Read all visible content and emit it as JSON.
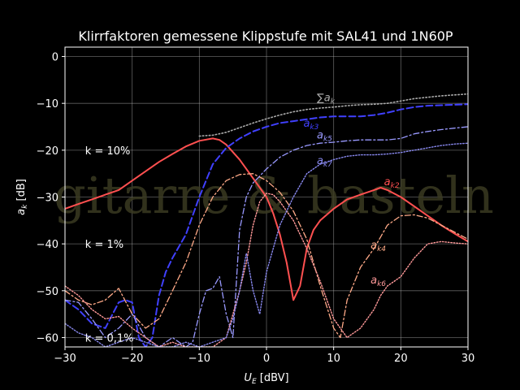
{
  "chart_data": {
    "type": "line",
    "title": "Klirrfaktoren gemessene Klippstufe mit SAL41 und 1N60P",
    "xlabel": {
      "var": "U",
      "sub": "E",
      "unit": " [dBV]"
    },
    "ylabel": {
      "var": "a",
      "sub": "k",
      "unit": " [dB]"
    },
    "xlim": [
      -30,
      30
    ],
    "ylim": [
      -62,
      2
    ],
    "xticks": [
      -30,
      -20,
      -10,
      0,
      10,
      20,
      30
    ],
    "yticks": [
      0,
      -10,
      -20,
      -30,
      -40,
      -50,
      -60
    ],
    "xtick_labels": [
      "−30",
      "−20",
      "−10",
      "0",
      "10",
      "20",
      "30"
    ],
    "ytick_labels": [
      "0",
      "−10",
      "−20",
      "−30",
      "−40",
      "−50",
      "−60"
    ],
    "grid": true,
    "watermark": "gitarre & basteln",
    "reference_labels": [
      {
        "text": "k = 10%",
        "x": -27,
        "y": -20
      },
      {
        "text": "k = 1%",
        "x": -27,
        "y": -40
      },
      {
        "text": "k = 0,1%",
        "x": -27,
        "y": -60
      }
    ],
    "series": [
      {
        "label": "a",
        "sub": "k2",
        "color": "#ff5050",
        "dash": "",
        "width": 2,
        "label_pos": [
          17.5,
          -27.5
        ],
        "x": [
          -30,
          -28,
          -26,
          -24,
          -22,
          -20,
          -18,
          -16,
          -14,
          -12,
          -10,
          -8,
          -7,
          -6,
          -4,
          -2,
          0,
          1,
          2,
          3,
          4,
          5,
          6,
          7,
          8,
          10,
          12,
          14,
          16,
          17,
          18,
          20,
          22,
          24,
          26,
          28,
          30
        ],
        "y": [
          -32.5,
          -31.5,
          -30.5,
          -29.5,
          -28.5,
          -26.5,
          -24.5,
          -22.5,
          -20.8,
          -19.2,
          -18,
          -17.5,
          -17.8,
          -18.8,
          -22,
          -26,
          -30,
          -33.5,
          -38,
          -44,
          -52,
          -49,
          -41,
          -37,
          -35,
          -32.5,
          -30.5,
          -29.5,
          -28.5,
          -28,
          -28.5,
          -30,
          -32,
          -34,
          -36,
          -37.8,
          -39.5
        ]
      },
      {
        "label": "a",
        "sub": "k3",
        "color": "#4040ff",
        "dash": "8,4",
        "width": 2,
        "label_pos": [
          5.5,
          -15
        ],
        "x": [
          -30,
          -28,
          -26,
          -24,
          -22,
          -21,
          -20,
          -19,
          -18,
          -17,
          -16,
          -15,
          -14,
          -12,
          -10,
          -8,
          -6,
          -4,
          -2,
          0,
          2,
          4,
          6,
          8,
          10,
          12,
          14,
          16,
          18,
          20,
          22,
          24,
          26,
          28,
          30
        ],
        "y": [
          -52,
          -54,
          -57,
          -58,
          -52.5,
          -52,
          -52.5,
          -60,
          -62,
          -60,
          -51,
          -46,
          -43,
          -38,
          -30,
          -23,
          -19.5,
          -17.5,
          -16,
          -15,
          -14.2,
          -13.8,
          -13.4,
          -13,
          -12.8,
          -12.8,
          -12.8,
          -12.5,
          -12,
          -11.3,
          -10.8,
          -10.5,
          -10.4,
          -10.3,
          -10.2
        ]
      },
      {
        "label": "a",
        "sub": "k4",
        "color": "#ffaa88",
        "dash": "7,3,2,3",
        "width": 1.3,
        "label_pos": [
          15.5,
          -41
        ],
        "x": [
          -30,
          -28,
          -26,
          -24,
          -22,
          -20,
          -18,
          -16,
          -14,
          -12,
          -10,
          -8,
          -6,
          -4,
          -2,
          0,
          2,
          4,
          6,
          8,
          10,
          11,
          12,
          14,
          16,
          18,
          20,
          22,
          24,
          26,
          28,
          30
        ],
        "y": [
          -50,
          -52,
          -53,
          -52,
          -49.5,
          -55,
          -58,
          -56,
          -50,
          -44,
          -36,
          -30,
          -26.5,
          -25.2,
          -25,
          -26.5,
          -29,
          -33,
          -39,
          -49,
          -58,
          -60,
          -52,
          -45,
          -41,
          -36,
          -34,
          -33.8,
          -34.5,
          -36,
          -37.5,
          -39
        ]
      },
      {
        "label": "a",
        "sub": "k5",
        "color": "#9999ff",
        "dash": "7,3,2,3",
        "width": 1.3,
        "label_pos": [
          7.5,
          -17.5
        ],
        "x": [
          -30,
          -28,
          -26,
          -24,
          -22,
          -20,
          -18,
          -16,
          -14,
          -12,
          -11,
          -10,
          -9,
          -8,
          -7,
          -6,
          -5,
          -4,
          -3,
          -2,
          0,
          2,
          4,
          6,
          8,
          10,
          12,
          14,
          16,
          18,
          20,
          22,
          24,
          26,
          28,
          30
        ],
        "y": [
          -52,
          -52.5,
          -56,
          -60,
          -58,
          -55,
          -60,
          -62,
          -60,
          -62,
          -61,
          -55,
          -50,
          -49.5,
          -47,
          -55,
          -60,
          -37,
          -30,
          -27,
          -24,
          -21.5,
          -20,
          -19,
          -18.5,
          -18.3,
          -18,
          -17.8,
          -17.8,
          -17.8,
          -17.5,
          -16.5,
          -16,
          -15.6,
          -15.3,
          -15
        ]
      },
      {
        "label": "a",
        "sub": "k6",
        "color": "#ff9999",
        "dash": "1.5,2",
        "width": 1.4,
        "label_pos": [
          15.5,
          -48.5
        ],
        "x": [
          -30,
          -28,
          -26,
          -24,
          -22,
          -20,
          -18,
          -16,
          -14,
          -12,
          -10,
          -8,
          -6,
          -5,
          -4,
          -3,
          -2,
          -1,
          0,
          1,
          2,
          4,
          6,
          8,
          10,
          12,
          14,
          16,
          17,
          18,
          19,
          20,
          22,
          24,
          26,
          28,
          30
        ],
        "y": [
          -49,
          -51,
          -54,
          -56,
          -55.5,
          -58,
          -60,
          -62,
          -61,
          -62,
          -62,
          -62,
          -60,
          -55,
          -50,
          -44,
          -36,
          -31,
          -29.2,
          -29.5,
          -31,
          -35,
          -41,
          -48,
          -56,
          -60,
          -58,
          -54,
          -51,
          -49,
          -48,
          -47,
          -43,
          -40,
          -39.5,
          -39.8,
          -40
        ]
      },
      {
        "label": "a",
        "sub": "k7",
        "color": "#8888ee",
        "dash": "1.5,2",
        "width": 1.4,
        "label_pos": [
          7.5,
          -23
        ],
        "x": [
          -30,
          -28,
          -26,
          -24,
          -22,
          -20,
          -18,
          -16,
          -14,
          -12,
          -10,
          -8,
          -6,
          -5,
          -4,
          -3,
          -2,
          -1,
          0,
          2,
          4,
          6,
          8,
          10,
          12,
          14,
          16,
          18,
          20,
          22,
          24,
          26,
          28,
          30
        ],
        "y": [
          -57,
          -59,
          -60,
          -62,
          -61,
          -60,
          -61,
          -62,
          -62,
          -61,
          -62,
          -61,
          -60,
          -56,
          -50,
          -42,
          -50,
          -55,
          -46,
          -36,
          -30,
          -25,
          -23,
          -22,
          -21.3,
          -21,
          -21,
          -20.8,
          -20.5,
          -20,
          -19.5,
          -19,
          -18.7,
          -18.5
        ]
      },
      {
        "label": "∑a",
        "sub": "k",
        "color": "#aaaaaa",
        "dash": "1.5,2.5",
        "width": 1.6,
        "label_pos": [
          7.5,
          -9.5
        ],
        "x": [
          -10,
          -8,
          -6,
          -4,
          -2,
          0,
          2,
          4,
          6,
          8,
          10,
          12,
          14,
          16,
          18,
          20,
          22,
          24,
          26,
          28,
          30
        ],
        "y": [
          -17,
          -16.8,
          -16.2,
          -15.2,
          -14.2,
          -13.3,
          -12.5,
          -11.8,
          -11.3,
          -11,
          -10.8,
          -10.5,
          -10.3,
          -10.2,
          -10,
          -9.5,
          -9,
          -8.7,
          -8.4,
          -8.2,
          -8
        ]
      }
    ]
  }
}
